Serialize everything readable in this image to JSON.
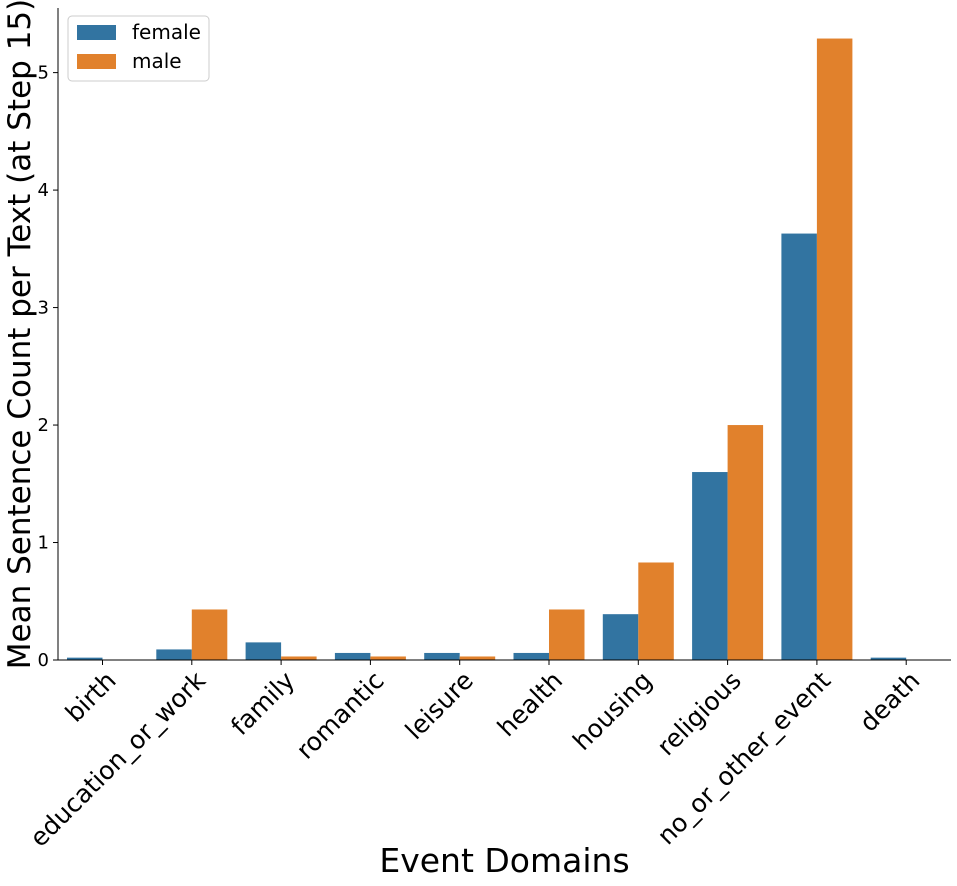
{
  "chart_data": {
    "type": "bar",
    "title": "",
    "xlabel": "Event Domains",
    "ylabel": "Mean Sentence Count per Text (at Step 15)",
    "categories": [
      "birth",
      "education_or_work",
      "family",
      "romantic",
      "leisure",
      "health",
      "housing",
      "religious",
      "no_or_other_event",
      "death"
    ],
    "series": [
      {
        "name": "female",
        "color": "#3274a1",
        "values": [
          0.02,
          0.09,
          0.15,
          0.06,
          0.06,
          0.06,
          0.39,
          1.6,
          3.63,
          0.02
        ]
      },
      {
        "name": "male",
        "color": "#e1812c",
        "values": [
          0.0,
          0.43,
          0.03,
          0.03,
          0.03,
          0.43,
          0.83,
          2.0,
          5.29,
          0.0
        ]
      }
    ],
    "ylim": [
      0,
      5.55
    ],
    "yticks": [
      0,
      1,
      2,
      3,
      4,
      5
    ],
    "grid": false,
    "legend_position": "top-left"
  }
}
